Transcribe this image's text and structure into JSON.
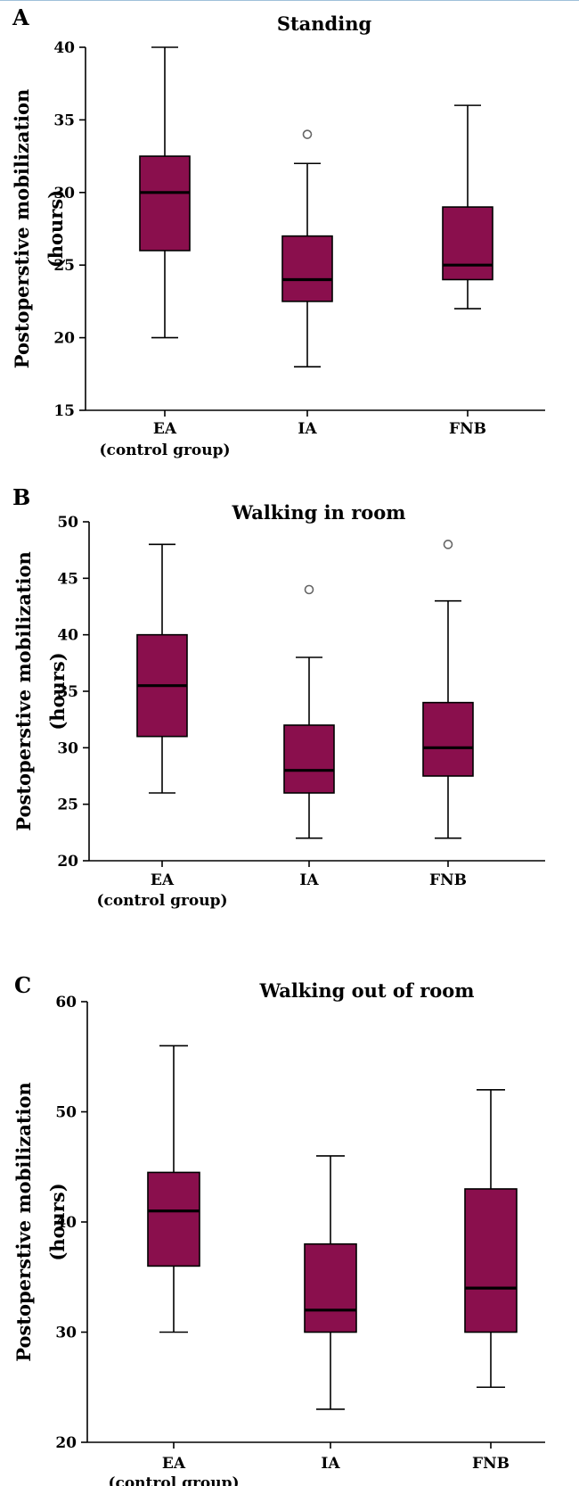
{
  "chart_data": [
    {
      "type": "boxplot",
      "panel_label": "A",
      "title": "Standing",
      "ylabel": "Postoperstive mobilization",
      "ylabel_unit": "(hours)",
      "ylim": [
        15,
        40
      ],
      "yticks": [
        15,
        20,
        25,
        30,
        35,
        40
      ],
      "categories": [
        {
          "label": "EA",
          "sublabel": "(control group)"
        },
        {
          "label": "IA",
          "sublabel": ""
        },
        {
          "label": "FNB",
          "sublabel": ""
        }
      ],
      "boxes": [
        {
          "min": 20,
          "q1": 26,
          "median": 30,
          "q3": 32.5,
          "max": 40,
          "outliers": []
        },
        {
          "min": 18,
          "q1": 22.5,
          "median": 24,
          "q3": 27,
          "max": 32,
          "outliers": [
            34
          ]
        },
        {
          "min": 22,
          "q1": 24,
          "median": 25,
          "q3": 29,
          "max": 36,
          "outliers": []
        }
      ]
    },
    {
      "type": "boxplot",
      "panel_label": "B",
      "title": "Walking in room",
      "ylabel": "Postoperstive mobilization",
      "ylabel_unit": "(hours)",
      "ylim": [
        20,
        50
      ],
      "yticks": [
        20,
        25,
        30,
        35,
        40,
        45,
        50
      ],
      "categories": [
        {
          "label": "EA",
          "sublabel": "(control group)"
        },
        {
          "label": "IA",
          "sublabel": ""
        },
        {
          "label": "FNB",
          "sublabel": ""
        }
      ],
      "boxes": [
        {
          "min": 26,
          "q1": 31,
          "median": 35.5,
          "q3": 40,
          "max": 48,
          "outliers": []
        },
        {
          "min": 22,
          "q1": 26,
          "median": 28,
          "q3": 32,
          "max": 38,
          "outliers": [
            44
          ]
        },
        {
          "min": 22,
          "q1": 27.5,
          "median": 30,
          "q3": 34,
          "max": 43,
          "outliers": [
            48
          ]
        }
      ]
    },
    {
      "type": "boxplot",
      "panel_label": "C",
      "title": "Walking out of room",
      "ylabel": "Postoperstive mobilization",
      "ylabel_unit": "(hours)",
      "ylim": [
        20,
        60
      ],
      "yticks": [
        20,
        30,
        40,
        50,
        60
      ],
      "categories": [
        {
          "label": "EA",
          "sublabel": "(control group)"
        },
        {
          "label": "IA",
          "sublabel": ""
        },
        {
          "label": "FNB",
          "sublabel": ""
        }
      ],
      "boxes": [
        {
          "min": 30,
          "q1": 36,
          "median": 41,
          "q3": 44.5,
          "max": 56,
          "outliers": []
        },
        {
          "min": 23,
          "q1": 30,
          "median": 32,
          "q3": 38,
          "max": 46,
          "outliers": []
        },
        {
          "min": 25,
          "q1": 30,
          "median": 34,
          "q3": 43,
          "max": 52,
          "outliers": []
        }
      ]
    }
  ],
  "colors": {
    "box_fill": "#8a0f4d",
    "stroke": "#000000",
    "outlier_stroke": "#666666",
    "background": "#ffffff"
  }
}
